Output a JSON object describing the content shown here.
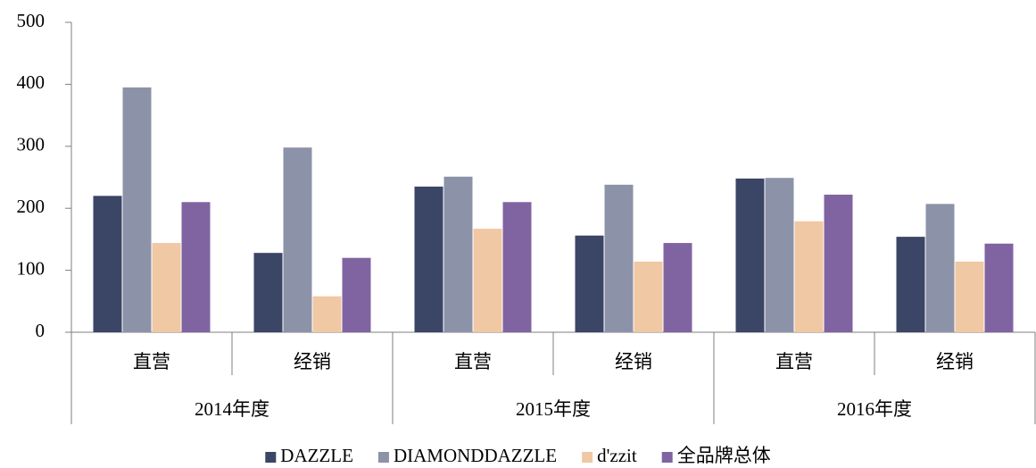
{
  "chart_data": {
    "type": "bar",
    "categories": [
      "直营",
      "经销",
      "直营",
      "经销",
      "直营",
      "经销"
    ],
    "groups": [
      "2014年度",
      "2015年度",
      "2016年度"
    ],
    "series": [
      {
        "name": "DAZZLE",
        "color": "#3b4566",
        "values": [
          220,
          128,
          235,
          156,
          248,
          154
        ]
      },
      {
        "name": "DIAMONDDAZZLE",
        "color": "#8c93a8",
        "values": [
          395,
          298,
          251,
          238,
          249,
          207
        ]
      },
      {
        "name": "d'zzit",
        "color": "#f0c8a4",
        "values": [
          144,
          58,
          167,
          114,
          179,
          114
        ]
      },
      {
        "name": "全品牌总体",
        "color": "#8064a2",
        "values": [
          210,
          120,
          210,
          144,
          222,
          143
        ]
      }
    ],
    "ylim": [
      0,
      500
    ],
    "yticks": [
      0,
      100,
      200,
      300,
      400,
      500
    ],
    "legend": "bottom"
  }
}
